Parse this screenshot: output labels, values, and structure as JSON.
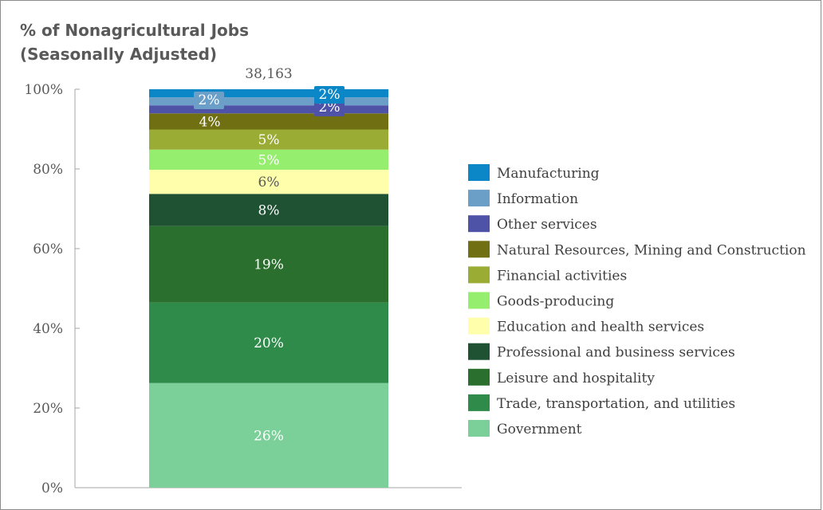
{
  "chart_data": {
    "type": "bar",
    "stacked": true,
    "title": "% of Nonagricultural Jobs\n(Seasonally Adjusted)",
    "xlabel": "",
    "ylabel": "",
    "ylim": [
      0,
      100
    ],
    "yticks": [
      "0%",
      "20%",
      "40%",
      "60%",
      "80%",
      "100%"
    ],
    "total_label": "38,163",
    "grid": false,
    "legend_position": "right",
    "series": [
      {
        "name": "Government",
        "value": 26,
        "label": "26%",
        "color": "#7bcf98",
        "label_color": "#ffffff"
      },
      {
        "name": "Trade, transportation, and utilities",
        "value": 20,
        "label": "20%",
        "color": "#2e8b4a",
        "label_color": "#ffffff"
      },
      {
        "name": "Leisure and hospitality",
        "value": 19,
        "label": "19%",
        "color": "#2a6f2e",
        "label_color": "#ffffff"
      },
      {
        "name": "Professional and business services",
        "value": 8,
        "label": "8%",
        "color": "#1e5233",
        "label_color": "#ffffff"
      },
      {
        "name": "Education and health services",
        "value": 6,
        "label": "6%",
        "color": "#ffffab",
        "label_color": "#595959"
      },
      {
        "name": "Goods-producing",
        "value": 5,
        "label": "5%",
        "color": "#96ee6e",
        "label_color": "#ffffff"
      },
      {
        "name": "Financial activities",
        "value": 5,
        "label": "5%",
        "color": "#9aac34",
        "label_color": "#ffffff"
      },
      {
        "name": "Natural Resources, Mining and Construction",
        "value": 4,
        "label": "4%",
        "color": "#707012",
        "label_color": "#ffffff"
      },
      {
        "name": "Other services",
        "value": 2,
        "label": "2%",
        "color": "#4f53a8",
        "label_color": "#ffffff"
      },
      {
        "name": "Information",
        "value": 2,
        "label": "2%",
        "color": "#6b9fc8",
        "label_color": "#ffffff"
      },
      {
        "name": "Manufacturing",
        "value": 2,
        "label": "2%",
        "color": "#0b87c7",
        "label_color": "#ffffff"
      }
    ],
    "legend_order": [
      "Manufacturing",
      "Information",
      "Other services",
      "Natural Resources, Mining and Construction",
      "Financial activities",
      "Goods-producing",
      "Education and health services",
      "Professional and business services",
      "Leisure and hospitality",
      "Trade, transportation, and utilities",
      "Government"
    ]
  }
}
